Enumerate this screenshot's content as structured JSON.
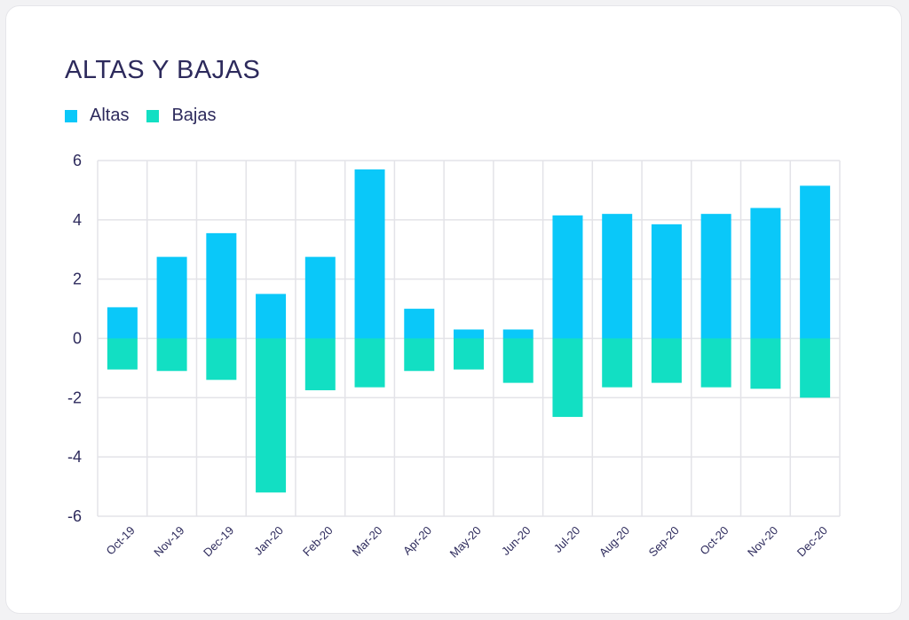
{
  "chart_data": {
    "type": "bar",
    "title": "ALTAS Y BAJAS",
    "xlabel": "",
    "ylabel": "",
    "categories": [
      "Oct-19",
      "Nov-19",
      "Dec-19",
      "Jan-20",
      "Feb-20",
      "Mar-20",
      "Apr-20",
      "May-20",
      "Jun-20",
      "Jul-20",
      "Aug-20",
      "Sep-20",
      "Oct-20",
      "Nov-20",
      "Dec-20"
    ],
    "series": [
      {
        "name": "Altas",
        "color": "#0ac8f9",
        "values": [
          1.05,
          2.75,
          3.55,
          1.5,
          2.75,
          5.7,
          1.0,
          0.3,
          0.3,
          4.15,
          4.2,
          3.85,
          4.2,
          4.4,
          5.15
        ]
      },
      {
        "name": "Bajas",
        "color": "#12dfc3",
        "values": [
          -1.05,
          -1.1,
          -1.4,
          -5.2,
          -1.75,
          -1.65,
          -1.1,
          -1.05,
          -1.5,
          -2.65,
          -1.65,
          -1.5,
          -1.65,
          -1.7,
          -2.0
        ]
      }
    ],
    "ylim": [
      -6,
      6
    ],
    "yticks": [
      6,
      4,
      2,
      0,
      -2,
      -4,
      -6
    ],
    "grid": true,
    "stacked": true,
    "legend_position": "top-left"
  }
}
